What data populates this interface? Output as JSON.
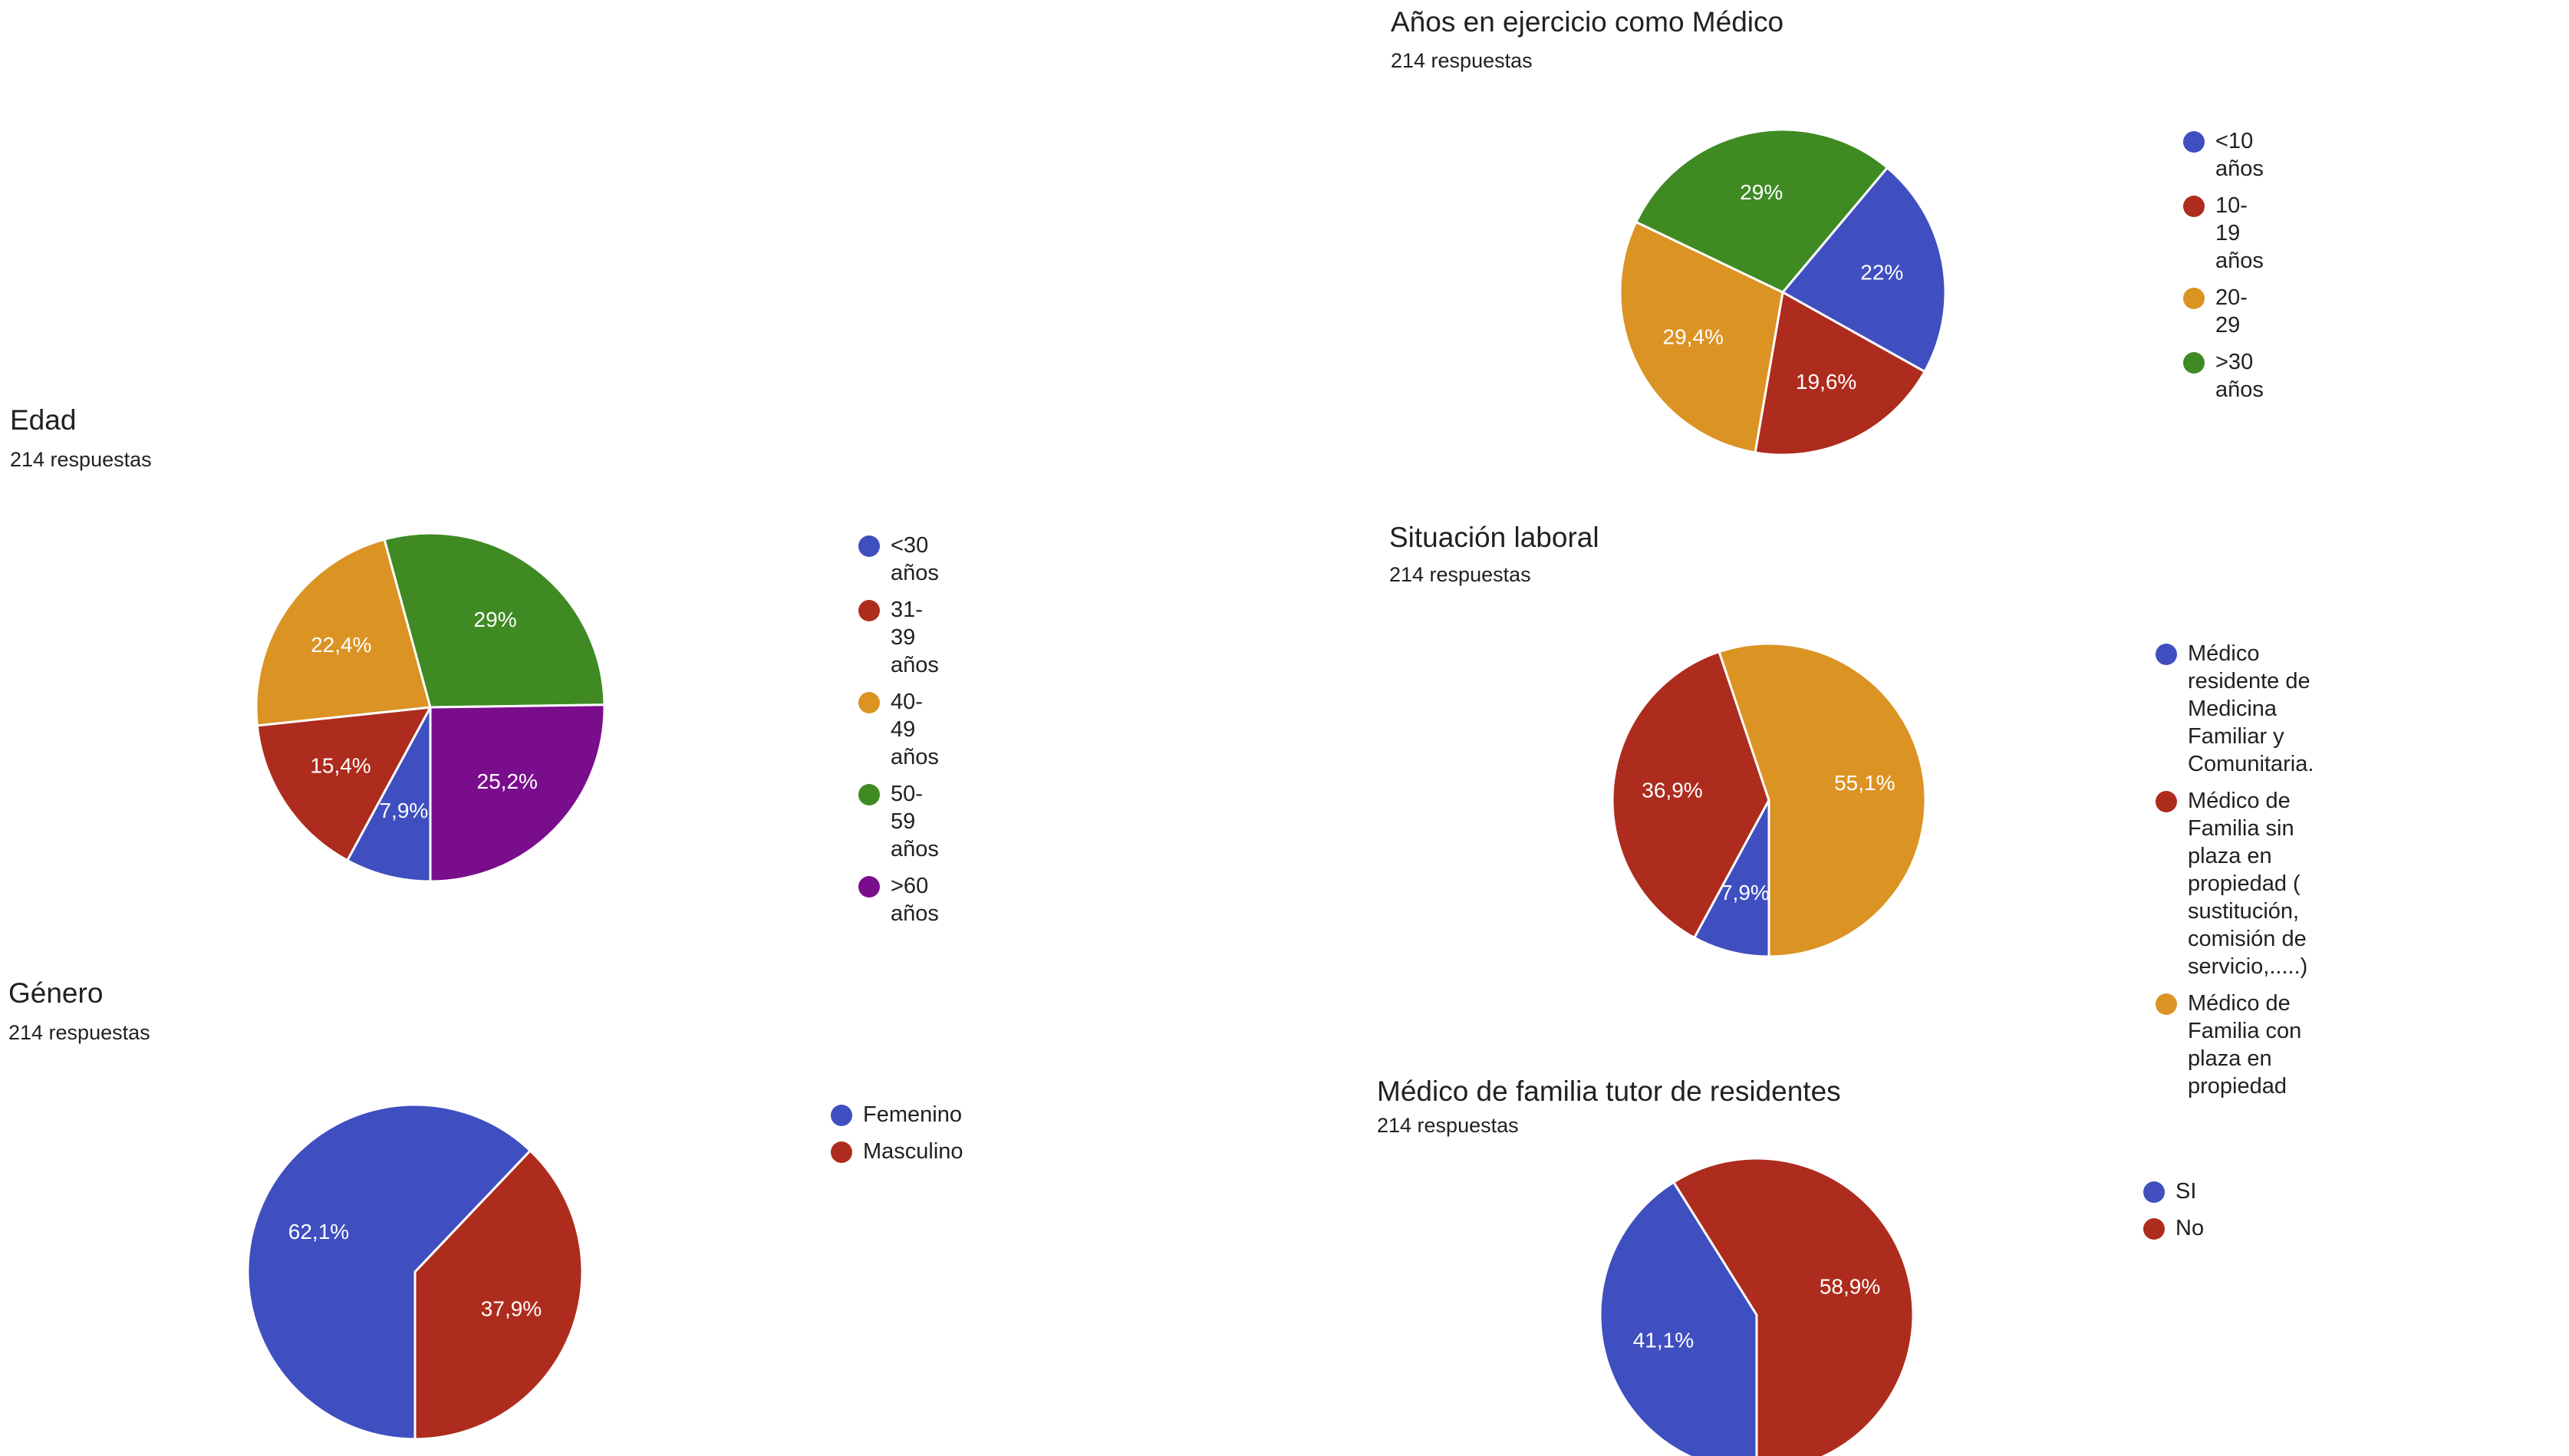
{
  "chart_data": [
    {
      "type": "pie",
      "title": "Años en ejercicio como Médico",
      "subtitle": "214 respuestas",
      "categories": [
        "<10 años",
        "10-19 años",
        "20-29",
        ">30 años"
      ],
      "values": [
        22,
        19.6,
        29.4,
        29
      ],
      "labels": [
        "22%",
        "19,6%",
        "29,4%",
        "29%"
      ],
      "colors": [
        "#3f4fc0",
        "#ad2c1d",
        "#db9324",
        "#3f8a23"
      ],
      "legend": "right"
    },
    {
      "type": "pie",
      "title": "Edad",
      "subtitle": "214 respuestas",
      "categories": [
        "<30 años",
        "31-39 años",
        "40-49 años",
        "50-59 años",
        ">60 años"
      ],
      "values": [
        7.9,
        15.4,
        22.4,
        29,
        25.2
      ],
      "labels": [
        "7,9%",
        "15,4%",
        "22,4%",
        "29%",
        "25,2%"
      ],
      "colors": [
        "#3f4fc0",
        "#ad2c1d",
        "#db9324",
        "#3f8a23",
        "#7a0d8c"
      ],
      "legend": "right"
    },
    {
      "type": "pie",
      "title": "Situación laboral",
      "subtitle": "214 respuestas",
      "categories": [
        "Médico residente de Medicina Familiar y Comunitaria.",
        "Médico de Familia sin plaza en propiedad ( sustitución, comisión de servicio,.....)",
        "Médico de Familia con plaza en propiedad"
      ],
      "legend_lines": [
        [
          "Médico residente de Medicina Familiar y",
          "Comunitaria."
        ],
        [
          "Médico de Familia sin plaza en",
          "propiedad ( sustitución, comisión de",
          "servicio,.....)"
        ],
        [
          "Médico de Familia con plaza en",
          "propiedad"
        ]
      ],
      "values": [
        7.9,
        36.9,
        55.1
      ],
      "labels": [
        "7,9%",
        "36,9%",
        "55,1%"
      ],
      "colors": [
        "#3f4fc0",
        "#ad2c1d",
        "#db9324"
      ],
      "legend": "right"
    },
    {
      "type": "pie",
      "title": "Género",
      "subtitle": "214 respuestas",
      "categories": [
        "Femenino",
        "Masculino"
      ],
      "values": [
        62.1,
        37.9
      ],
      "labels": [
        "62,1%",
        "37,9%"
      ],
      "colors": [
        "#3f4fc0",
        "#ad2c1d"
      ],
      "legend": "right"
    },
    {
      "type": "pie",
      "title": "Médico de familia tutor de residentes",
      "subtitle": "214 respuestas",
      "categories": [
        "SI",
        "No"
      ],
      "values": [
        41.1,
        58.9
      ],
      "labels": [
        "41,1%",
        "58,9%"
      ],
      "colors": [
        "#3f4fc0",
        "#ad2c1d"
      ],
      "legend": "right"
    }
  ]
}
